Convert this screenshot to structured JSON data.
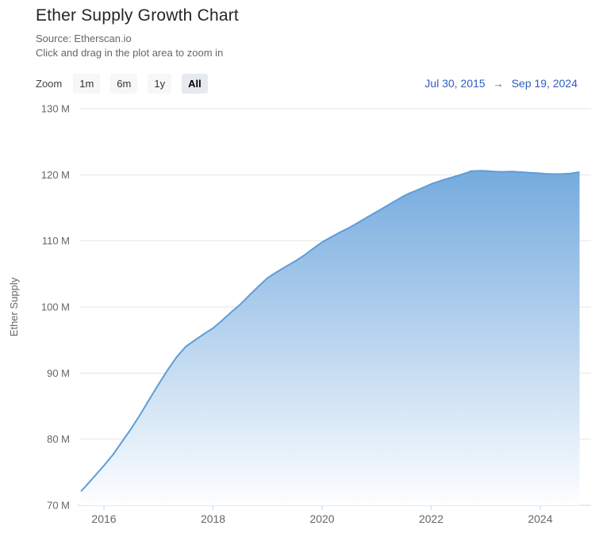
{
  "header": {
    "title": "Ether Supply Growth Chart",
    "source_line": "Source: Etherscan.io",
    "hint_line": "Click and drag in the plot area to zoom in"
  },
  "controls": {
    "zoom_label": "Zoom",
    "buttons": [
      {
        "label": "1m",
        "selected": false
      },
      {
        "label": "6m",
        "selected": false
      },
      {
        "label": "1y",
        "selected": false
      },
      {
        "label": "All",
        "selected": true
      }
    ],
    "range_start": "Jul 30, 2015",
    "range_arrow": "→",
    "range_end": "Sep 19, 2024"
  },
  "chart_data": {
    "type": "area",
    "title": "Ether Supply Growth Chart",
    "subtitle": [
      "Source: Etherscan.io",
      "Click and drag in the plot area to zoom in"
    ],
    "xlabel": "",
    "ylabel": "Ether Supply",
    "x_ticks": [
      2016,
      2018,
      2020,
      2022,
      2024
    ],
    "y_ticks": [
      70,
      80,
      90,
      100,
      110,
      120,
      130
    ],
    "y_tick_suffix": " M",
    "xlim": [
      2015.578,
      2024.93
    ],
    "ylim": [
      70,
      130
    ],
    "grid": "horizontal",
    "legend": "none",
    "range_start": "Jul 30, 2015",
    "range_end": "Sep 19, 2024",
    "series": [
      {
        "name": "Ether Supply",
        "unit": "million ETH",
        "points": [
          [
            2015.578,
            72.1
          ],
          [
            2015.7,
            73.2
          ],
          [
            2015.85,
            74.6
          ],
          [
            2016.0,
            76.0
          ],
          [
            2016.17,
            77.7
          ],
          [
            2016.33,
            79.6
          ],
          [
            2016.5,
            81.6
          ],
          [
            2016.67,
            83.8
          ],
          [
            2016.83,
            86.0
          ],
          [
            2017.0,
            88.3
          ],
          [
            2017.17,
            90.5
          ],
          [
            2017.33,
            92.4
          ],
          [
            2017.5,
            94.0
          ],
          [
            2017.67,
            95.0
          ],
          [
            2017.83,
            95.9
          ],
          [
            2018.0,
            96.8
          ],
          [
            2018.17,
            98.0
          ],
          [
            2018.33,
            99.2
          ],
          [
            2018.5,
            100.4
          ],
          [
            2018.67,
            101.8
          ],
          [
            2018.83,
            103.1
          ],
          [
            2019.0,
            104.4
          ],
          [
            2019.17,
            105.3
          ],
          [
            2019.33,
            106.1
          ],
          [
            2019.5,
            106.9
          ],
          [
            2019.67,
            107.8
          ],
          [
            2019.83,
            108.8
          ],
          [
            2020.0,
            109.8
          ],
          [
            2020.17,
            110.6
          ],
          [
            2020.33,
            111.3
          ],
          [
            2020.5,
            112.0
          ],
          [
            2020.67,
            112.8
          ],
          [
            2020.83,
            113.6
          ],
          [
            2021.0,
            114.4
          ],
          [
            2021.17,
            115.2
          ],
          [
            2021.33,
            116.0
          ],
          [
            2021.5,
            116.8
          ],
          [
            2021.6,
            117.2
          ],
          [
            2021.75,
            117.7
          ],
          [
            2022.0,
            118.6
          ],
          [
            2022.25,
            119.3
          ],
          [
            2022.5,
            119.9
          ],
          [
            2022.65,
            120.3
          ],
          [
            2022.73,
            120.55
          ],
          [
            2022.9,
            120.6
          ],
          [
            2023.0,
            120.58
          ],
          [
            2023.15,
            120.5
          ],
          [
            2023.3,
            120.45
          ],
          [
            2023.5,
            120.48
          ],
          [
            2023.65,
            120.4
          ],
          [
            2023.8,
            120.3
          ],
          [
            2023.95,
            120.25
          ],
          [
            2024.1,
            120.15
          ],
          [
            2024.25,
            120.1
          ],
          [
            2024.4,
            120.12
          ],
          [
            2024.55,
            120.2
          ],
          [
            2024.72,
            120.4
          ]
        ]
      }
    ],
    "colors": {
      "line": "#5f9cd9",
      "fill_top": "#5b9bd8",
      "fill_bottom": "#fdfeff",
      "grid": "#e6e6e6",
      "axis": "#ccd6eb",
      "tick_label": "#666666",
      "title": "#262626",
      "range_text": "#2e5cc5"
    }
  }
}
